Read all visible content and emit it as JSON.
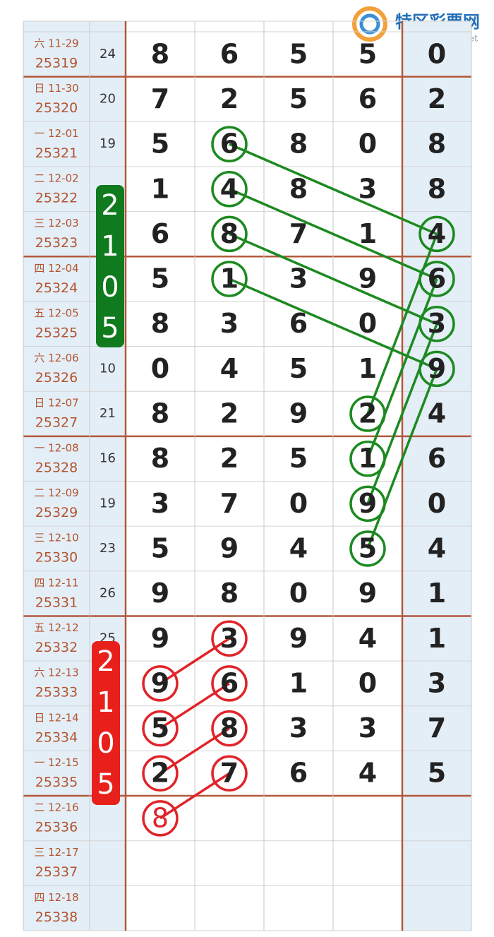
{
  "logo": {
    "name": "特区彩票网",
    "url": "tqcp.net"
  },
  "badges": [
    {
      "text": "2105",
      "color": "green"
    },
    {
      "text": "2105",
      "color": "red"
    }
  ],
  "rows": [
    {
      "date": "六 11-29",
      "issue": "25319",
      "sum": 24,
      "digits": [
        8,
        6,
        5,
        5,
        0
      ]
    },
    {
      "date": "日 11-30",
      "issue": "25320",
      "sum": 20,
      "digits": [
        7,
        2,
        5,
        6,
        2
      ]
    },
    {
      "date": "一 12-01",
      "issue": "25321",
      "sum": 19,
      "digits": [
        5,
        6,
        8,
        0,
        8
      ]
    },
    {
      "date": "二 12-02",
      "issue": "25322",
      "sum": null,
      "digits": [
        1,
        4,
        8,
        3,
        8
      ]
    },
    {
      "date": "三 12-03",
      "issue": "25323",
      "sum": null,
      "digits": [
        6,
        8,
        7,
        1,
        4
      ]
    },
    {
      "date": "四 12-04",
      "issue": "25324",
      "sum": null,
      "digits": [
        5,
        1,
        3,
        9,
        6
      ]
    },
    {
      "date": "五 12-05",
      "issue": "25325",
      "sum": null,
      "digits": [
        8,
        3,
        6,
        0,
        3
      ]
    },
    {
      "date": "六 12-06",
      "issue": "25326",
      "sum": 10,
      "digits": [
        0,
        4,
        5,
        1,
        9
      ]
    },
    {
      "date": "日 12-07",
      "issue": "25327",
      "sum": 21,
      "digits": [
        8,
        2,
        9,
        2,
        4
      ]
    },
    {
      "date": "一 12-08",
      "issue": "25328",
      "sum": 16,
      "digits": [
        8,
        2,
        5,
        1,
        6
      ]
    },
    {
      "date": "二 12-09",
      "issue": "25329",
      "sum": 19,
      "digits": [
        3,
        7,
        0,
        9,
        0
      ]
    },
    {
      "date": "三 12-10",
      "issue": "25330",
      "sum": 23,
      "digits": [
        5,
        9,
        4,
        5,
        4
      ]
    },
    {
      "date": "四 12-11",
      "issue": "25331",
      "sum": 26,
      "digits": [
        9,
        8,
        0,
        9,
        1
      ]
    },
    {
      "date": "五 12-12",
      "issue": "25332",
      "sum": 25,
      "digits": [
        9,
        3,
        9,
        4,
        1
      ]
    },
    {
      "date": "六 12-13",
      "issue": "25333",
      "sum": null,
      "digits": [
        9,
        6,
        1,
        0,
        3
      ]
    },
    {
      "date": "日 12-14",
      "issue": "25334",
      "sum": null,
      "digits": [
        5,
        8,
        3,
        3,
        7
      ]
    },
    {
      "date": "一 12-15",
      "issue": "25335",
      "sum": null,
      "digits": [
        2,
        7,
        6,
        4,
        5
      ]
    },
    {
      "date": "二 12-16",
      "issue": "25336",
      "sum": null,
      "digits": [
        8,
        null,
        null,
        null,
        null
      ]
    },
    {
      "date": "三 12-17",
      "issue": "25337",
      "sum": null,
      "digits": [
        null,
        null,
        null,
        null,
        null
      ]
    },
    {
      "date": "四 12-18",
      "issue": "25338",
      "sum": null,
      "digits": [
        null,
        null,
        null,
        null,
        null
      ]
    }
  ]
}
